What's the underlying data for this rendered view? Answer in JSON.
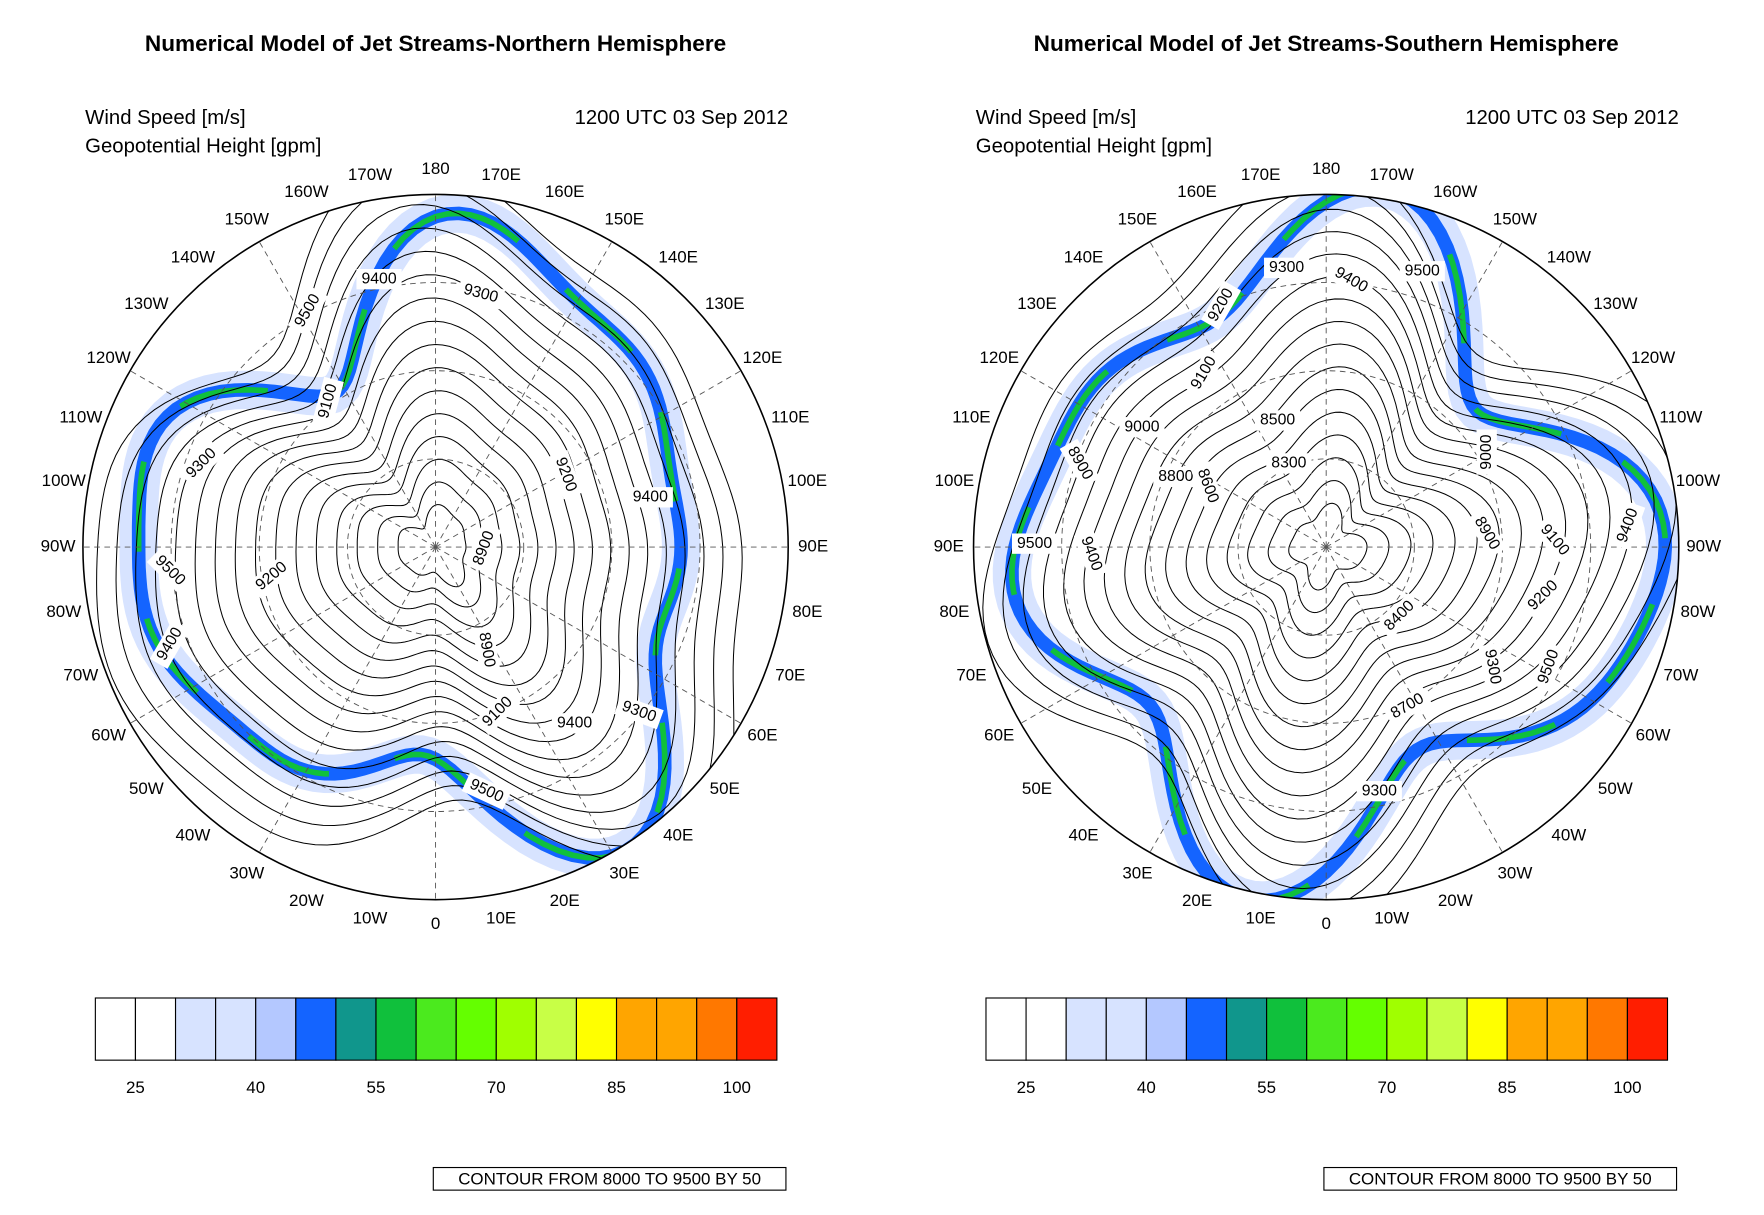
{
  "panels": [
    {
      "title": "Numerical Model of Jet Streams-Northern Hemisphere",
      "field_labels": [
        "Wind Speed [m/s]",
        "Geopotential Height [gpm]"
      ],
      "time": "1200 UTC 03 Sep 2012",
      "longitudes": [
        "180",
        "170E",
        "160E",
        "150E",
        "140E",
        "130E",
        "120E",
        "110E",
        "100E",
        "90E",
        "80E",
        "70E",
        "60E",
        "50E",
        "40E",
        "30E",
        "20E",
        "10E",
        "0",
        "10W",
        "20W",
        "30W",
        "40W",
        "50W",
        "60W",
        "70W",
        "80W",
        "90W",
        "100W",
        "110W",
        "120W",
        "130W",
        "140W",
        "150W",
        "160W",
        "170W"
      ],
      "contour_labels": [
        9400,
        9300,
        9500,
        9100,
        9300,
        9400,
        9200,
        8900,
        9500,
        9200,
        9400,
        8900,
        9100,
        9400,
        9300,
        9500
      ],
      "colorbar": {
        "colors": [
          "#ffffff",
          "#ffffff",
          "#d7e3ff",
          "#d7e3ff",
          "#b4c8ff",
          "#1464ff",
          "#10968c",
          "#10c03c",
          "#4bea1e",
          "#64ff00",
          "#a0ff00",
          "#c8ff46",
          "#ffff00",
          "#ffa500",
          "#ffa500",
          "#ff7800",
          "#ff1e00"
        ],
        "range": [
          20,
          105
        ],
        "ticks": [
          25,
          40,
          55,
          70,
          85,
          100
        ]
      },
      "contour_note": "CONTOUR FROM 8000 TO 9500 BY 50"
    },
    {
      "title": "Numerical Model of Jet Streams-Southern Hemisphere",
      "field_labels": [
        "Wind Speed [m/s]",
        "Geopotential Height [gpm]"
      ],
      "time": "1200 UTC 03 Sep 2012",
      "longitudes": [
        "180",
        "170W",
        "160W",
        "150W",
        "140W",
        "130W",
        "120W",
        "110W",
        "100W",
        "90W",
        "80W",
        "70W",
        "60W",
        "50W",
        "40W",
        "30W",
        "20W",
        "10W",
        "0",
        "10E",
        "20E",
        "30E",
        "40E",
        "50E",
        "60E",
        "70E",
        "80E",
        "90E",
        "100E",
        "110E",
        "120E",
        "130E",
        "140E",
        "150E",
        "160E",
        "170E"
      ],
      "contour_labels": [
        9300,
        9400,
        9500,
        9200,
        9100,
        9000,
        8500,
        8300,
        8900,
        8800,
        8600,
        9000,
        8900,
        9100,
        9400,
        9500,
        9400,
        9200,
        8400,
        9300,
        9500,
        8700,
        9300
      ],
      "colorbar": {
        "colors": [
          "#ffffff",
          "#ffffff",
          "#d7e3ff",
          "#d7e3ff",
          "#b4c8ff",
          "#1464ff",
          "#10968c",
          "#10c03c",
          "#4bea1e",
          "#64ff00",
          "#a0ff00",
          "#c8ff46",
          "#ffff00",
          "#ffa500",
          "#ffa500",
          "#ff7800",
          "#ff1e00"
        ],
        "range": [
          20,
          105
        ],
        "ticks": [
          25,
          40,
          55,
          70,
          85,
          100
        ]
      },
      "contour_note": "CONTOUR FROM 8000 TO 9500 BY 50"
    }
  ]
}
